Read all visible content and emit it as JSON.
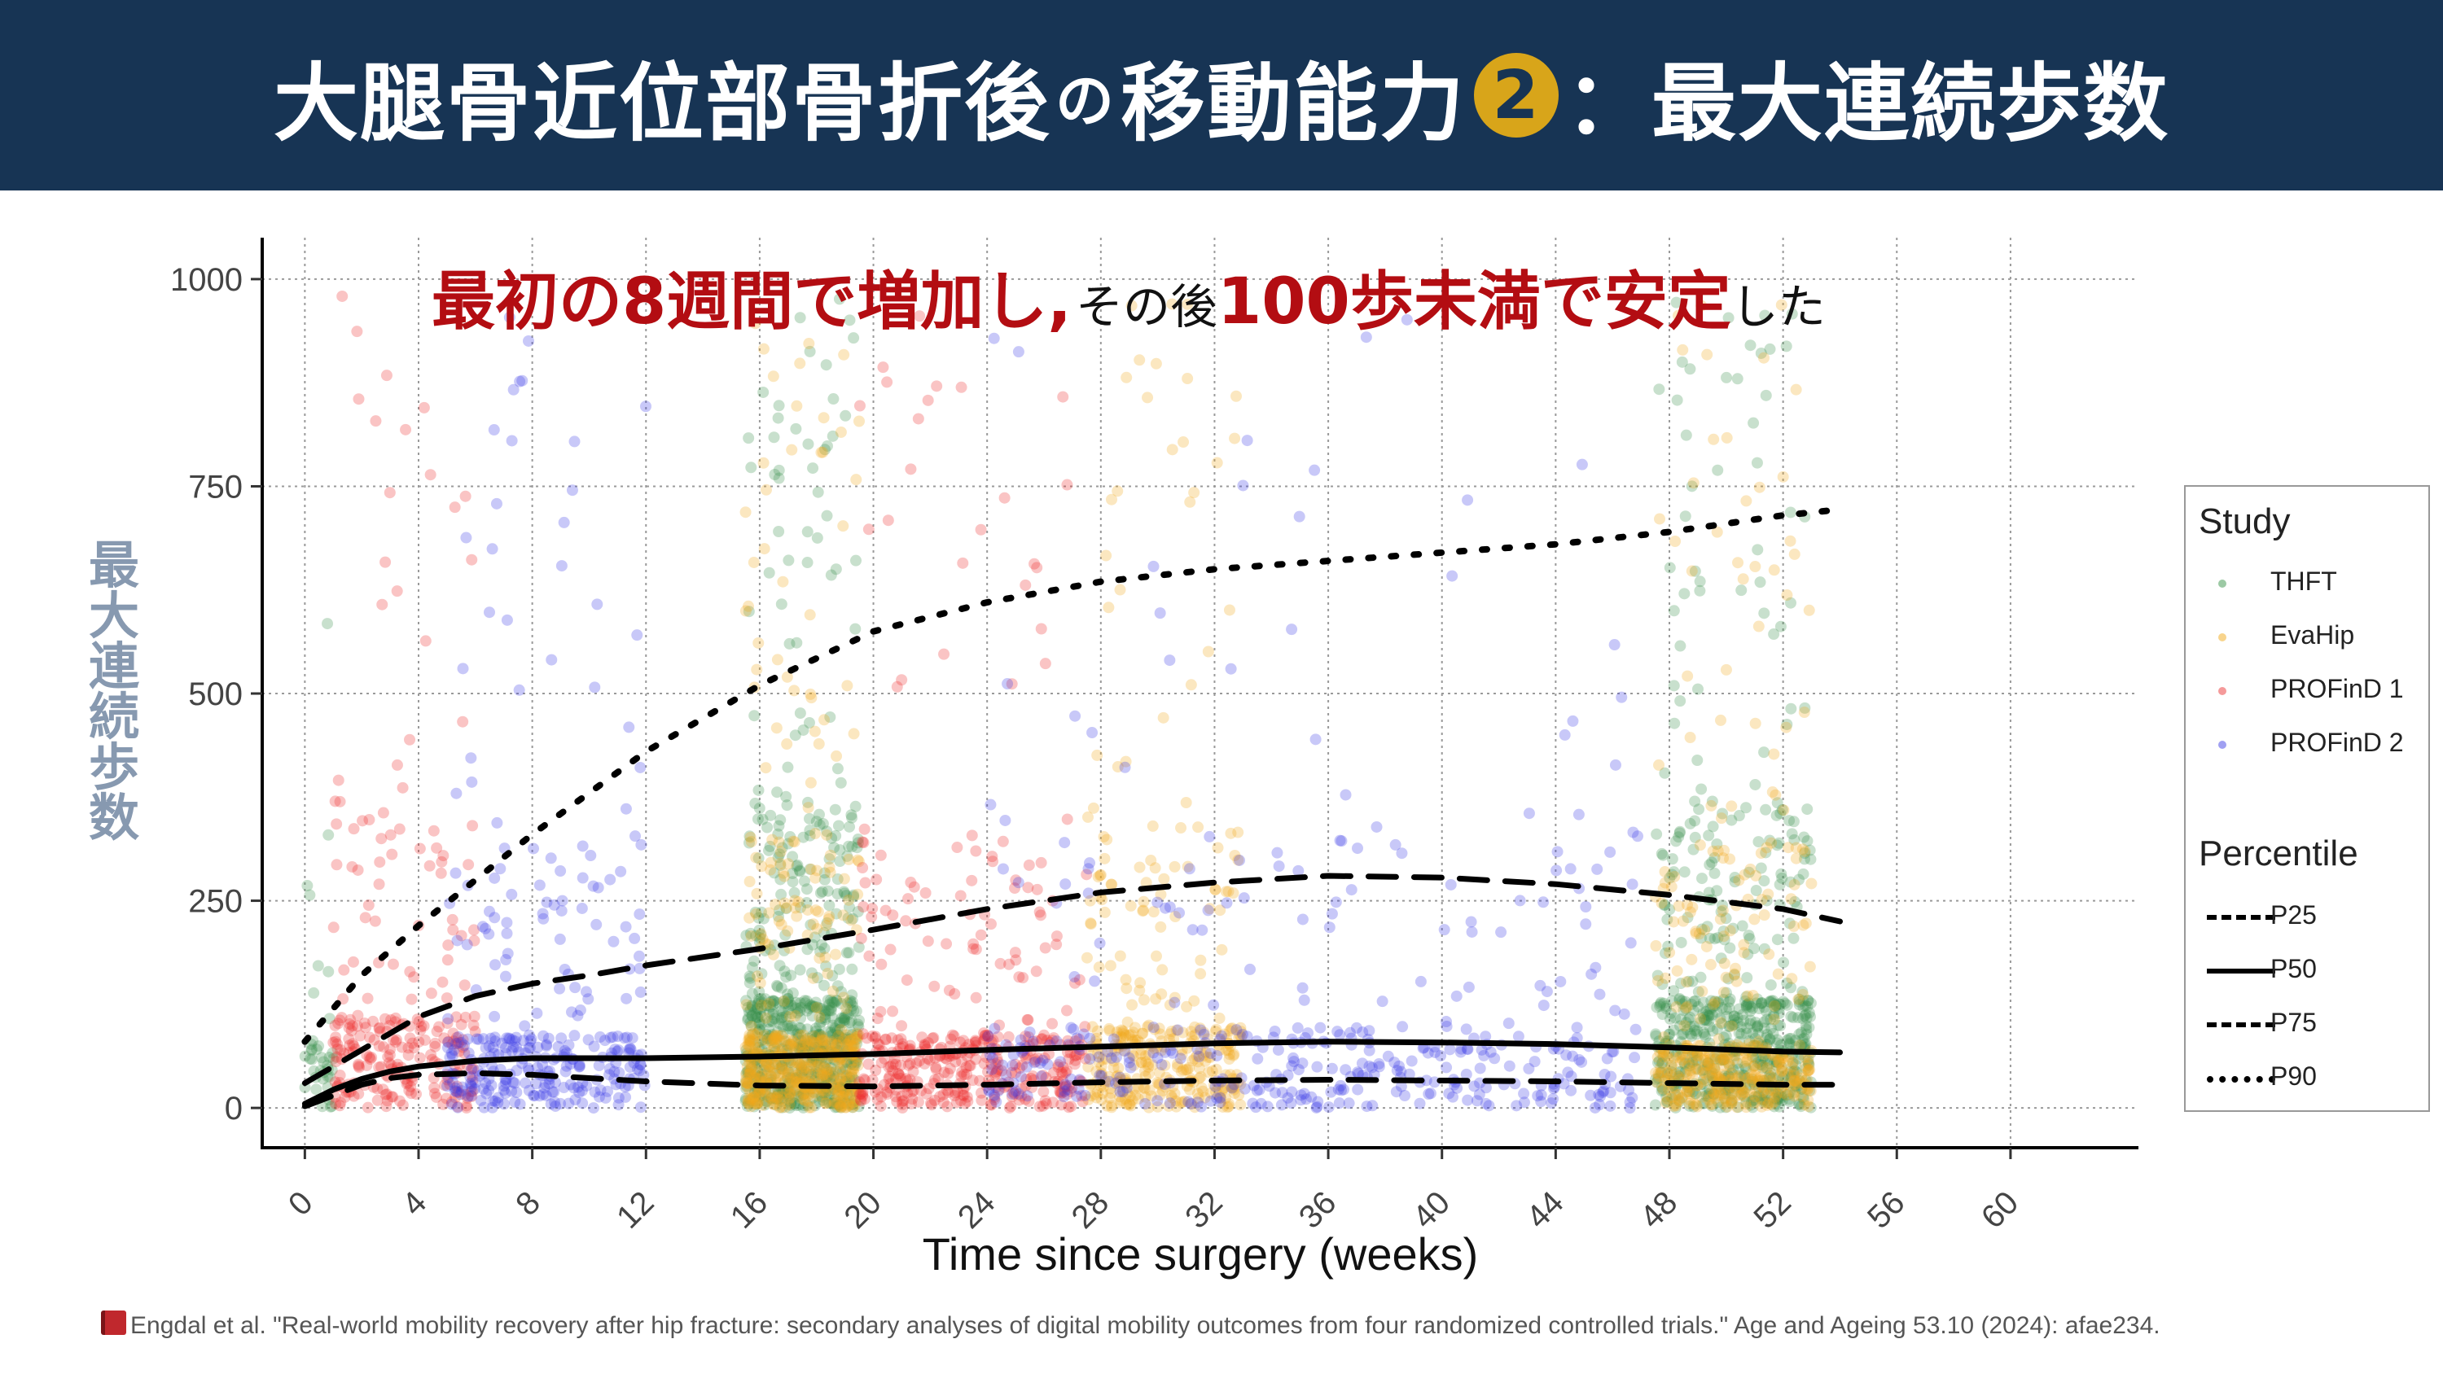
{
  "header": {
    "title_part1": "大腿骨近位部骨折後",
    "title_particle": "の",
    "title_part2": "移動能力",
    "badge": "2",
    "title_part3": "：最大連続歩数"
  },
  "annotation": {
    "part1": "最初の8週間で増加し,",
    "part2": "その後",
    "part3": "100歩未満で安定",
    "part4": "した"
  },
  "y_axis_label_jp": [
    "最",
    "大",
    "連",
    "続",
    "歩",
    "数"
  ],
  "citation": "Engdal et al. \"Real-world mobility recovery after hip fracture: secondary analyses of digital mobility outcomes from four randomized controlled trials.\" Age and Ageing 53.10 (2024): afae234.",
  "legend": {
    "study_title": "Study",
    "studies": [
      {
        "name": "THFT",
        "color": "#3a8f4a"
      },
      {
        "name": "EvaHip",
        "color": "#f2a81d"
      },
      {
        "name": "PROFinD 1",
        "color": "#ee2a2a"
      },
      {
        "name": "PROFinD 2",
        "color": "#3b3be6"
      }
    ],
    "percentile_title": "Percentile",
    "percentiles": [
      {
        "name": "P25",
        "style": "dashed"
      },
      {
        "name": "P50",
        "style": "solid"
      },
      {
        "name": "P75",
        "style": "dashed"
      },
      {
        "name": "P90",
        "style": "dotted"
      }
    ]
  },
  "chart_data": {
    "type": "scatter",
    "xlabel": "Time since surgery (weeks)",
    "ylabel": "最大連続歩数",
    "xlim": [
      -1.5,
      64.5
    ],
    "ylim": [
      -48,
      1050
    ],
    "x_ticks": [
      0,
      4,
      8,
      12,
      16,
      20,
      24,
      28,
      32,
      36,
      40,
      44,
      48,
      52,
      56,
      60
    ],
    "y_ticks": [
      0,
      250,
      500,
      750,
      1000
    ],
    "grid": "dotted",
    "legend_position": "right",
    "scatter_clusters": [
      {
        "study": "THFT",
        "x": [
          0,
          1
        ],
        "y_median": 40,
        "n": 40
      },
      {
        "study": "THFT",
        "x": [
          15.5,
          19.5
        ],
        "y_median": 60,
        "n": 700
      },
      {
        "study": "THFT",
        "x": [
          47.5,
          53
        ],
        "y_median": 60,
        "n": 650
      },
      {
        "study": "EvaHip",
        "x": [
          15.5,
          19.5
        ],
        "y_median": 40,
        "n": 520
      },
      {
        "study": "EvaHip",
        "x": [
          27.5,
          33
        ],
        "y_median": 45,
        "n": 360
      },
      {
        "study": "EvaHip",
        "x": [
          47.5,
          53
        ],
        "y_median": 35,
        "n": 420
      },
      {
        "study": "PROFinD 1",
        "x": [
          1,
          6
        ],
        "y_median": 50,
        "n": 260
      },
      {
        "study": "PROFinD 1",
        "x": [
          19.5,
          27.5
        ],
        "y_median": 40,
        "n": 420
      },
      {
        "study": "PROFinD 2",
        "x": [
          5,
          12
        ],
        "y_median": 40,
        "n": 320
      },
      {
        "study": "PROFinD 2",
        "x": [
          24,
          47
        ],
        "y_median": 45,
        "n": 420
      }
    ],
    "series": [
      {
        "name": "P25",
        "style": "dashed",
        "x": [
          0,
          1,
          2,
          3,
          4,
          6,
          8,
          10,
          12,
          16,
          20,
          24,
          28,
          32,
          36,
          40,
          44,
          48,
          52,
          54
        ],
        "y": [
          2,
          15,
          28,
          36,
          40,
          42,
          40,
          36,
          32,
          27,
          26,
          28,
          31,
          33,
          34,
          33,
          32,
          30,
          28,
          28
        ]
      },
      {
        "name": "P50",
        "style": "solid",
        "x": [
          0,
          1,
          2,
          3,
          4,
          6,
          8,
          10,
          12,
          16,
          20,
          24,
          28,
          32,
          36,
          40,
          44,
          48,
          52,
          54
        ],
        "y": [
          5,
          22,
          35,
          44,
          50,
          57,
          60,
          60,
          60,
          62,
          65,
          70,
          74,
          78,
          80,
          79,
          77,
          73,
          68,
          67
        ]
      },
      {
        "name": "P75",
        "style": "dashed",
        "x": [
          0,
          2,
          4,
          6,
          8,
          10,
          12,
          14,
          16,
          20,
          24,
          28,
          32,
          36,
          40,
          44,
          48,
          52,
          54
        ],
        "y": [
          30,
          70,
          110,
          135,
          150,
          160,
          172,
          182,
          192,
          215,
          240,
          260,
          272,
          280,
          278,
          270,
          257,
          240,
          225
        ]
      },
      {
        "name": "P90",
        "style": "dotted",
        "x": [
          0,
          2,
          4,
          6,
          8,
          12,
          16,
          20,
          24,
          28,
          32,
          36,
          40,
          44,
          48,
          52,
          54
        ],
        "y": [
          80,
          160,
          220,
          275,
          330,
          430,
          510,
          575,
          610,
          635,
          650,
          660,
          670,
          680,
          695,
          715,
          722
        ]
      }
    ]
  }
}
